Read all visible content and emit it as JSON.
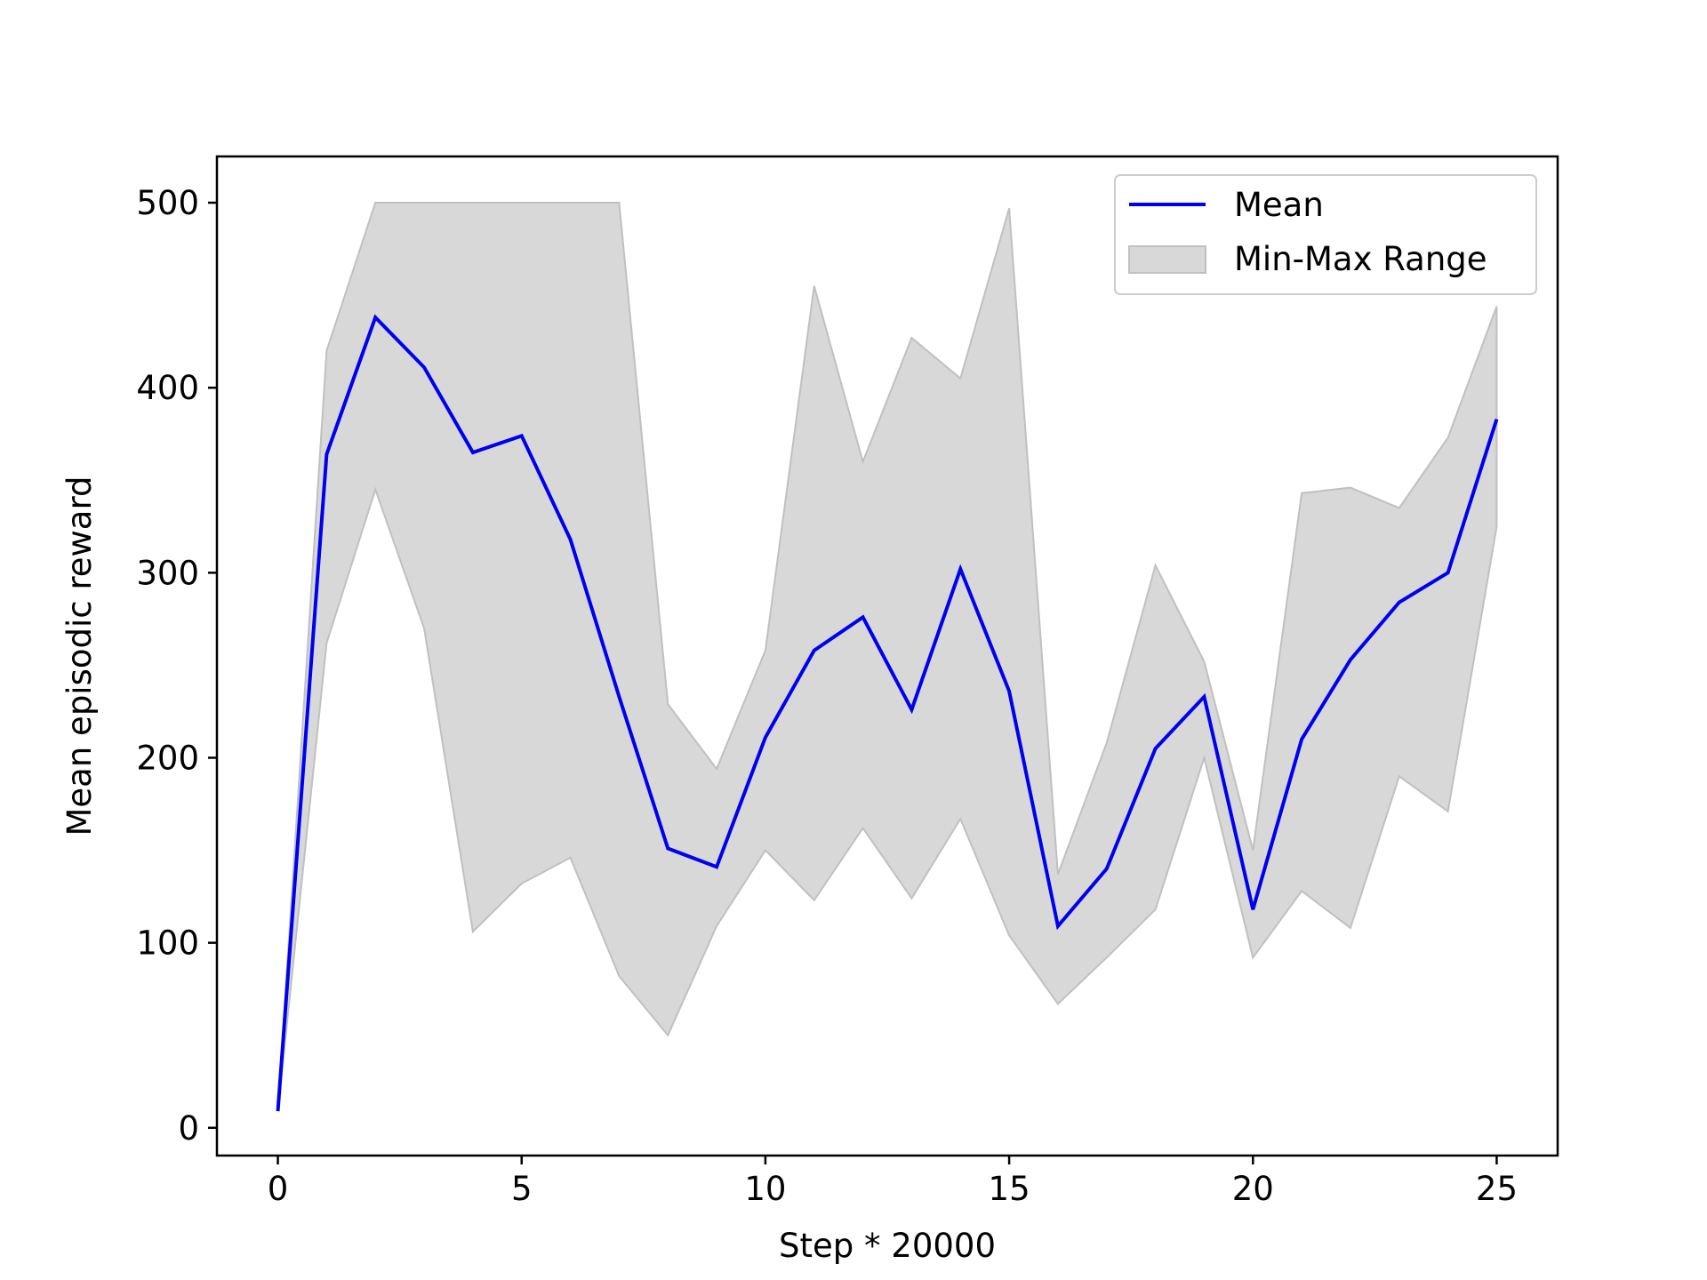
{
  "chart_data": {
    "type": "line",
    "title": "",
    "xlabel": "Step * 20000",
    "ylabel": "Mean episodic reward",
    "xlim": [
      -1.25,
      26.25
    ],
    "ylim": [
      -15,
      525
    ],
    "xticks": [
      0,
      5,
      10,
      15,
      20,
      25
    ],
    "yticks": [
      0,
      100,
      200,
      300,
      400,
      500
    ],
    "grid": false,
    "legend_position": "top-right",
    "x": [
      0,
      1,
      2,
      3,
      4,
      5,
      6,
      7,
      8,
      9,
      10,
      11,
      12,
      13,
      14,
      15,
      16,
      17,
      18,
      19,
      20,
      21,
      22,
      23,
      24,
      25
    ],
    "series": [
      {
        "name": "Mean",
        "color": "#0000ee",
        "values": [
          9,
          364,
          438,
          411,
          365,
          374,
          318,
          233,
          151,
          141,
          211,
          258,
          276,
          226,
          302,
          236,
          109,
          140,
          205,
          233,
          118,
          210,
          253,
          284,
          300,
          383
        ]
      }
    ],
    "band": {
      "name": "Min-Max Range",
      "color": "#d8d8d8",
      "edge_color": "#c0c0c0",
      "min": [
        9,
        262,
        345,
        270,
        106,
        132,
        146,
        82,
        50,
        109,
        150,
        123,
        162,
        124,
        167,
        104,
        67,
        92,
        118,
        200,
        92,
        128,
        108,
        190,
        171,
        325
      ],
      "max": [
        9,
        420,
        500,
        500,
        500,
        500,
        500,
        500,
        229,
        194,
        258,
        455,
        360,
        427,
        405,
        497,
        137,
        208,
        304,
        252,
        150,
        343,
        346,
        335,
        373,
        444
      ]
    }
  }
}
